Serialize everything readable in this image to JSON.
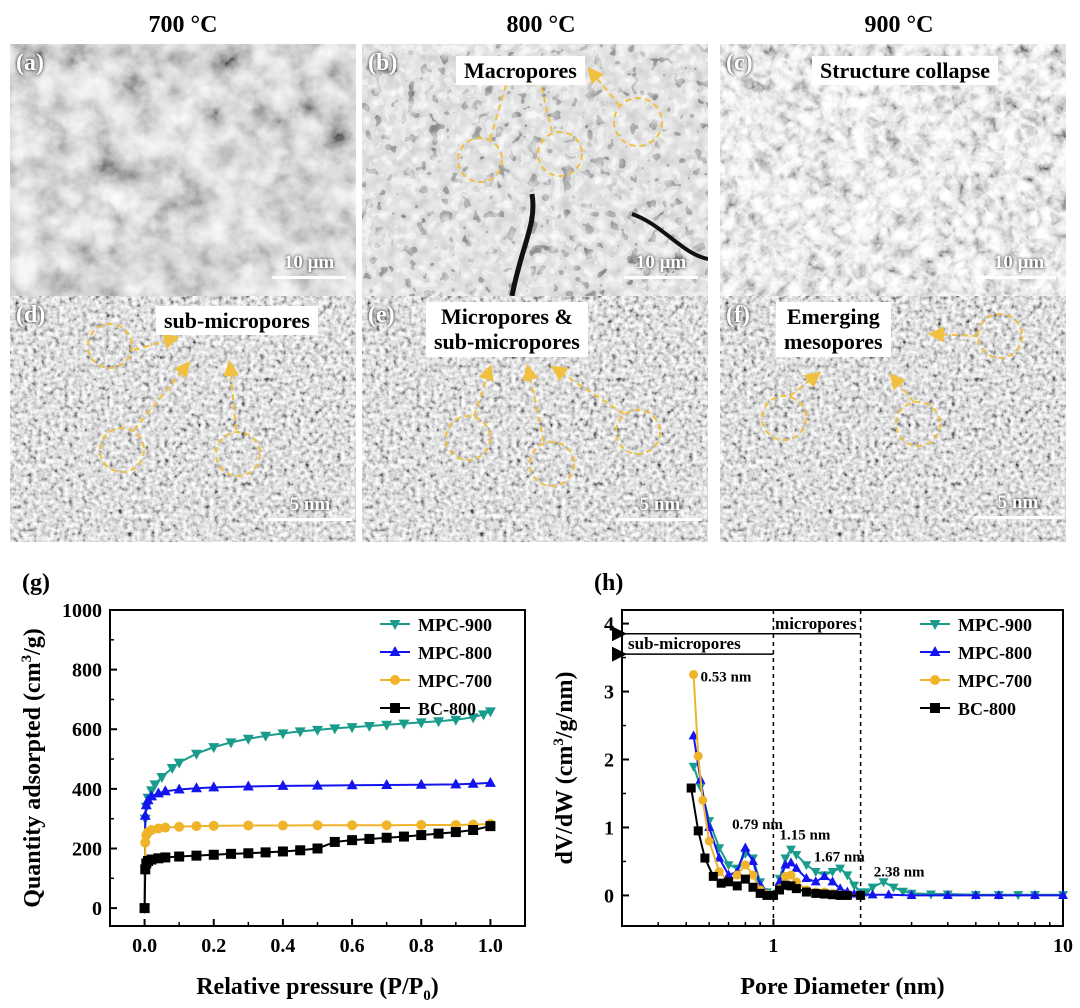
{
  "column_titles": [
    "700 °C",
    "800 °C",
    "900 °C"
  ],
  "panels": {
    "a": {
      "label": "(a)",
      "scale": "10 μm",
      "annotation": ""
    },
    "b": {
      "label": "(b)",
      "scale": "10 μm",
      "annotation": "Macropores"
    },
    "c": {
      "label": "(c)",
      "scale": "10 μm",
      "annotation": "Structure collapse"
    },
    "d": {
      "label": "(d)",
      "scale": "5 nm",
      "annotation": "sub-micropores"
    },
    "e": {
      "label": "(e)",
      "scale": "5 nm",
      "annotation_line1": "Micropores &",
      "annotation_line2": "sub-micropores"
    },
    "f": {
      "label": "(f)",
      "scale": "5 nm",
      "annotation_line1": "Emerging",
      "annotation_line2": "mesopores"
    }
  },
  "colors": {
    "MPC-900": "#1a9c8c",
    "MPC-800": "#1414f0",
    "MPC-700": "#f0b428",
    "BC-800": "#000000",
    "annotation-circle": "#f0c040"
  },
  "chart_data": [
    {
      "panel_label": "(g)",
      "type": "scatter",
      "xlabel": "Relative pressure (P/P",
      "xlabel_sub": "0",
      "xlabel_end": ")",
      "ylabel": "Quantity adsorpted (cm",
      "ylabel_sup": "3",
      "ylabel_end": "/g)",
      "xlim": [
        -0.1,
        1.1
      ],
      "ylim": [
        -60,
        1000
      ],
      "xticks": [
        "0.0",
        "0.2",
        "0.4",
        "0.6",
        "0.8",
        "1.0"
      ],
      "yticks": [
        "0",
        "200",
        "400",
        "600",
        "800",
        "1000"
      ],
      "legend_position": "top-right",
      "series": [
        {
          "name": "MPC-900",
          "marker": "triangle-down",
          "x": [
            0.0,
            0.002,
            0.005,
            0.01,
            0.02,
            0.03,
            0.05,
            0.08,
            0.1,
            0.15,
            0.2,
            0.25,
            0.3,
            0.35,
            0.4,
            0.45,
            0.5,
            0.55,
            0.6,
            0.65,
            0.7,
            0.75,
            0.8,
            0.85,
            0.9,
            0.95,
            0.98,
            1.0
          ],
          "y": [
            0,
            300,
            340,
            370,
            395,
            415,
            440,
            470,
            488,
            518,
            540,
            556,
            568,
            578,
            586,
            593,
            598,
            603,
            607,
            611,
            615,
            619,
            623,
            627,
            632,
            640,
            650,
            660
          ]
        },
        {
          "name": "MPC-800",
          "marker": "triangle-up",
          "x": [
            0.0,
            0.002,
            0.005,
            0.01,
            0.02,
            0.04,
            0.06,
            0.1,
            0.15,
            0.2,
            0.3,
            0.4,
            0.5,
            0.6,
            0.7,
            0.8,
            0.9,
            0.95,
            1.0
          ],
          "y": [
            0,
            310,
            345,
            362,
            375,
            385,
            392,
            398,
            402,
            405,
            408,
            410,
            411,
            412,
            413,
            414,
            415,
            417,
            420
          ]
        },
        {
          "name": "MPC-700",
          "marker": "circle",
          "x": [
            0.0,
            0.002,
            0.005,
            0.01,
            0.02,
            0.04,
            0.06,
            0.1,
            0.15,
            0.2,
            0.3,
            0.4,
            0.5,
            0.6,
            0.7,
            0.8,
            0.9,
            0.95,
            1.0
          ],
          "y": [
            0,
            220,
            245,
            255,
            262,
            267,
            270,
            273,
            275,
            276,
            277,
            277,
            278,
            278,
            278,
            279,
            279,
            280,
            282
          ]
        },
        {
          "name": "BC-800",
          "marker": "square",
          "x": [
            0.0,
            0.002,
            0.005,
            0.01,
            0.02,
            0.04,
            0.06,
            0.1,
            0.15,
            0.2,
            0.25,
            0.3,
            0.35,
            0.4,
            0.45,
            0.5,
            0.55,
            0.6,
            0.65,
            0.7,
            0.75,
            0.8,
            0.85,
            0.9,
            0.95,
            1.0
          ],
          "y": [
            0,
            130,
            150,
            158,
            163,
            167,
            170,
            173,
            176,
            179,
            182,
            184,
            187,
            190,
            194,
            200,
            222,
            228,
            232,
            236,
            240,
            245,
            250,
            255,
            262,
            275
          ]
        }
      ]
    },
    {
      "panel_label": "(h)",
      "type": "line",
      "xscale": "log",
      "xlabel": "Pore Diameter (nm)",
      "ylabel": "dV/dW (cm",
      "ylabel_sup": "3",
      "ylabel_end": "/g/nm)",
      "xlim": [
        0.3,
        10
      ],
      "ylim": [
        -0.45,
        4.2
      ],
      "xticks": [
        "1",
        "10"
      ],
      "yticks": [
        "0",
        "1",
        "2",
        "3",
        "4"
      ],
      "legend_position": "top-right",
      "region_lines": [
        1,
        2
      ],
      "region_labels": {
        "micropores": "micropores",
        "sub_micropores": "sub-micropores"
      },
      "peak_labels": [
        "0.53 nm",
        "0.79 nm",
        "1.15 nm",
        "1.67 nm",
        "2.38 nm"
      ],
      "series": [
        {
          "name": "MPC-900",
          "marker": "triangle-down",
          "x": [
            0.53,
            0.56,
            0.6,
            0.65,
            0.7,
            0.75,
            0.8,
            0.85,
            0.9,
            0.95,
            1.0,
            1.05,
            1.1,
            1.15,
            1.2,
            1.3,
            1.4,
            1.5,
            1.6,
            1.7,
            1.8,
            1.9,
            2.0,
            2.1,
            2.2,
            2.4,
            2.6,
            2.8,
            3.0,
            3.5,
            4,
            5,
            6,
            7,
            8,
            10
          ],
          "y": [
            1.9,
            1.6,
            1.1,
            0.7,
            0.45,
            0.4,
            0.62,
            0.55,
            0.2,
            0.05,
            0.0,
            0.25,
            0.55,
            0.68,
            0.6,
            0.45,
            0.35,
            0.3,
            0.35,
            0.4,
            0.3,
            0.15,
            0.05,
            0.05,
            0.12,
            0.2,
            0.12,
            0.06,
            0.03,
            0.02,
            0.02,
            0.01,
            0.01,
            0.01,
            0.01,
            0.01
          ]
        },
        {
          "name": "MPC-800",
          "marker": "triangle-up",
          "x": [
            0.53,
            0.56,
            0.6,
            0.65,
            0.7,
            0.75,
            0.8,
            0.85,
            0.9,
            0.95,
            1.0,
            1.05,
            1.1,
            1.15,
            1.2,
            1.3,
            1.4,
            1.5,
            1.6,
            1.7,
            1.8,
            1.9,
            2.0,
            2.2,
            2.5,
            3,
            4,
            5,
            6,
            8,
            10
          ],
          "y": [
            2.35,
            1.7,
            1.0,
            0.55,
            0.3,
            0.35,
            0.7,
            0.5,
            0.15,
            0.03,
            0.0,
            0.2,
            0.45,
            0.48,
            0.4,
            0.25,
            0.2,
            0.28,
            0.2,
            0.1,
            0.05,
            0.02,
            0.01,
            0.01,
            0.01,
            0.0,
            0.0,
            0.0,
            0.0,
            0.0,
            0.0
          ]
        },
        {
          "name": "MPC-700",
          "marker": "circle",
          "x": [
            0.53,
            0.55,
            0.57,
            0.6,
            0.65,
            0.7,
            0.75,
            0.8,
            0.85,
            0.9,
            0.95,
            1.0,
            1.05,
            1.1,
            1.15,
            1.2,
            1.3,
            1.4,
            1.5,
            1.6,
            1.7,
            1.8,
            2.0
          ],
          "y": [
            3.25,
            2.05,
            1.4,
            0.8,
            0.35,
            0.2,
            0.3,
            0.45,
            0.3,
            0.08,
            0.02,
            0.0,
            0.1,
            0.28,
            0.3,
            0.2,
            0.08,
            0.05,
            0.05,
            0.03,
            0.01,
            0.0,
            0.0
          ]
        },
        {
          "name": "BC-800",
          "marker": "square",
          "x": [
            0.52,
            0.55,
            0.58,
            0.62,
            0.66,
            0.7,
            0.75,
            0.8,
            0.85,
            0.9,
            0.95,
            1.0,
            1.05,
            1.1,
            1.15,
            1.2,
            1.3,
            1.4,
            1.5,
            1.6,
            1.7,
            1.8,
            2.0
          ],
          "y": [
            1.58,
            0.95,
            0.55,
            0.28,
            0.18,
            0.2,
            0.14,
            0.24,
            0.12,
            0.03,
            0.0,
            0.0,
            0.08,
            0.15,
            0.14,
            0.1,
            0.05,
            0.03,
            0.02,
            0.01,
            0.0,
            0.0,
            0.0
          ]
        }
      ]
    }
  ]
}
